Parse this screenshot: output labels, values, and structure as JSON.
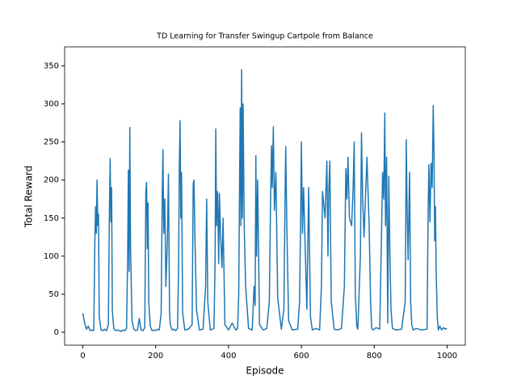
{
  "chart_data": {
    "type": "line",
    "title": "TD Learning for Transfer Swingup Cartpole from Balance",
    "x_label": "Episode",
    "y_label": "Total Reward",
    "x": [
      0,
      5,
      10,
      15,
      20,
      25,
      30,
      33,
      35,
      37,
      39,
      41,
      43,
      45,
      50,
      55,
      60,
      65,
      70,
      73,
      75,
      77,
      79,
      81,
      85,
      90,
      95,
      100,
      105,
      110,
      115,
      120,
      123,
      125,
      127,
      129,
      131,
      133,
      135,
      140,
      145,
      150,
      155,
      160,
      165,
      170,
      173,
      175,
      177,
      179,
      181,
      185,
      190,
      195,
      200,
      205,
      210,
      215,
      218,
      220,
      222,
      225,
      228,
      232,
      235,
      238,
      240,
      245,
      250,
      255,
      260,
      263,
      265,
      267,
      269,
      271,
      274,
      280,
      290,
      300,
      303,
      305,
      308,
      312,
      320,
      330,
      337,
      340,
      343,
      350,
      360,
      363,
      365,
      367,
      370,
      373,
      375,
      378,
      382,
      385,
      390,
      400,
      410,
      420,
      425,
      428,
      430,
      432,
      434,
      436,
      438,
      440,
      443,
      447,
      455,
      465,
      470,
      473,
      475,
      477,
      480,
      485,
      495,
      505,
      512,
      515,
      518,
      520,
      523,
      526,
      530,
      535,
      545,
      552,
      555,
      557,
      560,
      565,
      575,
      590,
      595,
      598,
      600,
      603,
      606,
      615,
      620,
      625,
      630,
      640,
      650,
      655,
      658,
      661,
      665,
      670,
      673,
      675,
      678,
      682,
      690,
      700,
      710,
      718,
      722,
      725,
      728,
      732,
      738,
      742,
      745,
      748,
      752,
      755,
      762,
      765,
      768,
      772,
      780,
      786,
      790,
      793,
      797,
      805,
      815,
      820,
      823,
      826,
      829,
      831,
      834,
      837,
      840,
      843,
      846,
      850,
      860,
      875,
      885,
      888,
      890,
      893,
      897,
      900,
      903,
      907,
      915,
      930,
      945,
      948,
      950,
      953,
      956,
      959,
      962,
      964,
      966,
      968,
      970,
      973,
      976,
      980,
      985,
      990,
      995,
      1000
    ],
    "series": [
      {
        "name": "Total Reward",
        "color": "#1f77b4",
        "values": [
          25,
          12,
          4,
          8,
          2,
          3,
          2,
          120,
          165,
          130,
          200,
          140,
          155,
          20,
          3,
          2,
          4,
          2,
          10,
          160,
          228,
          145,
          190,
          28,
          5,
          2,
          3,
          2,
          1,
          3,
          2,
          5,
          98,
          213,
          80,
          269,
          110,
          60,
          15,
          4,
          2,
          3,
          18,
          3,
          2,
          6,
          185,
          197,
          110,
          170,
          40,
          8,
          2,
          3,
          2,
          4,
          3,
          25,
          180,
          240,
          130,
          175,
          60,
          120,
          208,
          30,
          10,
          3,
          4,
          2,
          5,
          90,
          220,
          278,
          150,
          210,
          25,
          3,
          4,
          10,
          195,
          200,
          120,
          30,
          3,
          4,
          60,
          175,
          40,
          3,
          5,
          90,
          267,
          140,
          185,
          90,
          182,
          130,
          85,
          150,
          10,
          3,
          12,
          3,
          5,
          50,
          180,
          295,
          140,
          345,
          150,
          300,
          140,
          60,
          5,
          3,
          60,
          35,
          232,
          100,
          200,
          10,
          3,
          5,
          40,
          160,
          245,
          190,
          270,
          160,
          210,
          45,
          4,
          30,
          170,
          244,
          140,
          15,
          3,
          4,
          40,
          150,
          250,
          130,
          190,
          30,
          190,
          20,
          3,
          5,
          3,
          60,
          185,
          170,
          150,
          225,
          100,
          180,
          225,
          40,
          4,
          3,
          5,
          60,
          215,
          175,
          230,
          150,
          140,
          190,
          250,
          50,
          8,
          4,
          100,
          262,
          180,
          125,
          230,
          140,
          40,
          5,
          3,
          6,
          4,
          130,
          210,
          175,
          288,
          140,
          230,
          12,
          205,
          100,
          30,
          5,
          3,
          4,
          40,
          253,
          170,
          95,
          210,
          40,
          10,
          3,
          5,
          3,
          4,
          160,
          220,
          145,
          222,
          190,
          298,
          240,
          120,
          165,
          80,
          20,
          3,
          8,
          3,
          6,
          4,
          5
        ]
      }
    ],
    "xlim": [
      -50,
      1050
    ],
    "ylim": [
      -17,
      375
    ],
    "xticks": [
      0,
      200,
      400,
      600,
      800,
      1000
    ],
    "yticks": [
      0,
      50,
      100,
      150,
      200,
      250,
      300,
      350
    ]
  }
}
